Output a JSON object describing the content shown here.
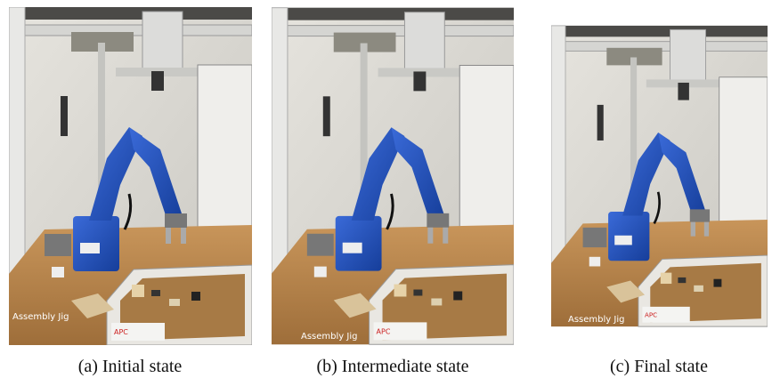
{
  "figure": {
    "panels": [
      {
        "label": "Assembly Jig",
        "caption": "(a) Initial state"
      },
      {
        "label": "Assembly Jig",
        "caption": "(b) Intermediate state"
      },
      {
        "label": "Assembly Jig",
        "caption": "(c) Final state"
      }
    ]
  }
}
